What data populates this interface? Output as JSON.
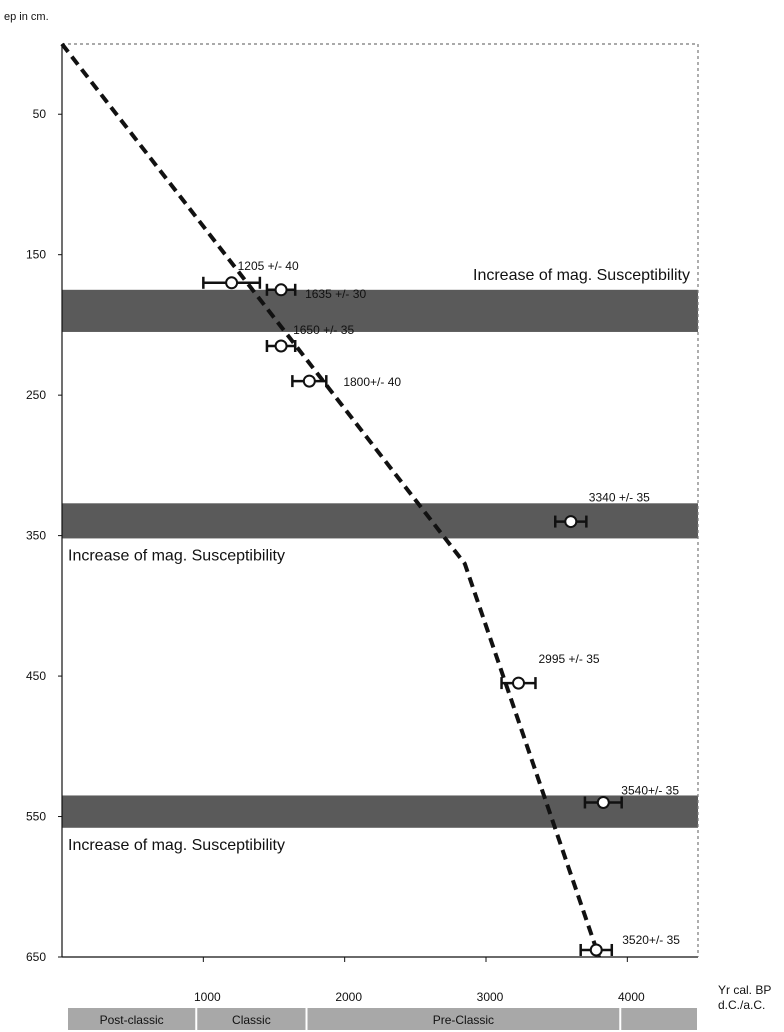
{
  "chart_data": {
    "type": "scatter",
    "ylabel": "ep in cm.",
    "xlabel_lines": [
      "Yr cal. BP",
      "d.C./a.C."
    ],
    "x_ticks": [
      1000,
      2000,
      3000,
      4000
    ],
    "y_ticks": [
      50,
      150,
      250,
      350,
      450,
      550,
      650
    ],
    "xlim": [
      0,
      4500
    ],
    "ylim": [
      0,
      650
    ],
    "grid": false,
    "points": [
      {
        "label": "1205 +/- 40",
        "x": 1200,
        "y": 170,
        "err": 200
      },
      {
        "label": "1635 +/- 30",
        "x": 1550,
        "y": 175,
        "err": 100
      },
      {
        "label": "1650 +/- 35",
        "x": 1550,
        "y": 215,
        "err": 100
      },
      {
        "label": "1800+/- 40",
        "x": 1750,
        "y": 240,
        "err": 120
      },
      {
        "label": "3340 +/- 35",
        "x": 3600,
        "y": 340,
        "err": 110
      },
      {
        "label": "2995 +/- 35",
        "x": 3230,
        "y": 455,
        "err": 120
      },
      {
        "label": "3540+/- 35",
        "x": 3830,
        "y": 540,
        "err": 130
      },
      {
        "label": "3520+/- 35",
        "x": 3780,
        "y": 645,
        "err": 110
      }
    ],
    "age_model_line": [
      {
        "x": 0,
        "y": 0
      },
      {
        "x": 2850,
        "y": 370
      },
      {
        "x": 3800,
        "y": 650
      }
    ],
    "bands": [
      {
        "y_from": 175,
        "y_to": 205,
        "label": "Increase of mag. Susceptibility",
        "label_pos": "above-right"
      },
      {
        "y_from": 327,
        "y_to": 352,
        "label": "Increase of mag. Susceptibility",
        "label_pos": "below-left"
      },
      {
        "y_from": 535,
        "y_to": 558,
        "label": "Increase of mag. Susceptibility",
        "label_pos": "below-left"
      }
    ],
    "periods": [
      {
        "label": "Post-classic",
        "x_from": 0,
        "x_to": 950
      },
      {
        "label": "Classic",
        "x_from": 950,
        "x_to": 1730
      },
      {
        "label": "Pre-Classic",
        "x_from": 1730,
        "x_to": 3950
      },
      {
        "label": "",
        "x_from": 3950,
        "x_to": 4500
      }
    ],
    "colors": {
      "band": "#5a5a5a",
      "period_bar": "#a8a8a8",
      "line": "#111111"
    }
  }
}
